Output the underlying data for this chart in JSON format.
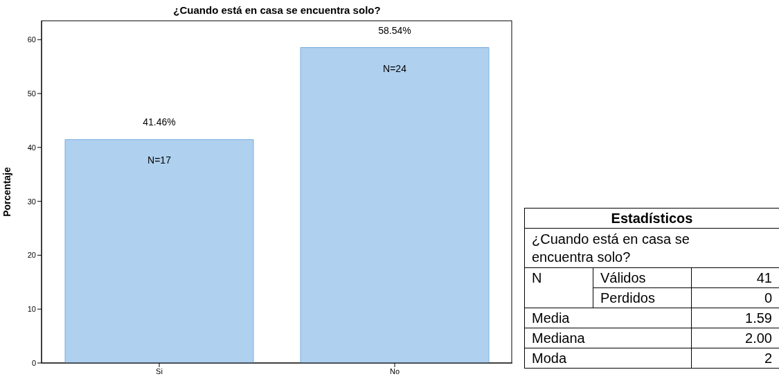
{
  "chart_data": [
    {
      "type": "bar",
      "title": "¿Cuando está en casa se encuentra solo?",
      "ylabel": "Porcentaje",
      "categories": [
        "Si",
        "No"
      ],
      "values": [
        41.46,
        58.54
      ],
      "value_labels": [
        "41.46%",
        "58.54%"
      ],
      "color": "#afd0ee",
      "ylim": [
        0,
        63.5
      ],
      "yticks": [
        0,
        10,
        20,
        30,
        40,
        50,
        60
      ],
      "grid": false,
      "legend": false,
      "annotations": [
        {
          "text": "N=17",
          "x": "Si",
          "y": 41.46
        },
        {
          "text": "N=24",
          "x": "No",
          "y": 58.54
        }
      ]
    },
    {
      "type": "other",
      "title": "Estadísticos",
      "annotations": [
        "¿Cuando está en casa se encuentra solo?",
        "N",
        "Válidos",
        "41",
        "Perdidos",
        "0",
        "Media",
        "1.59",
        "Mediana",
        "2.00",
        "Moda",
        "2"
      ]
    }
  ]
}
